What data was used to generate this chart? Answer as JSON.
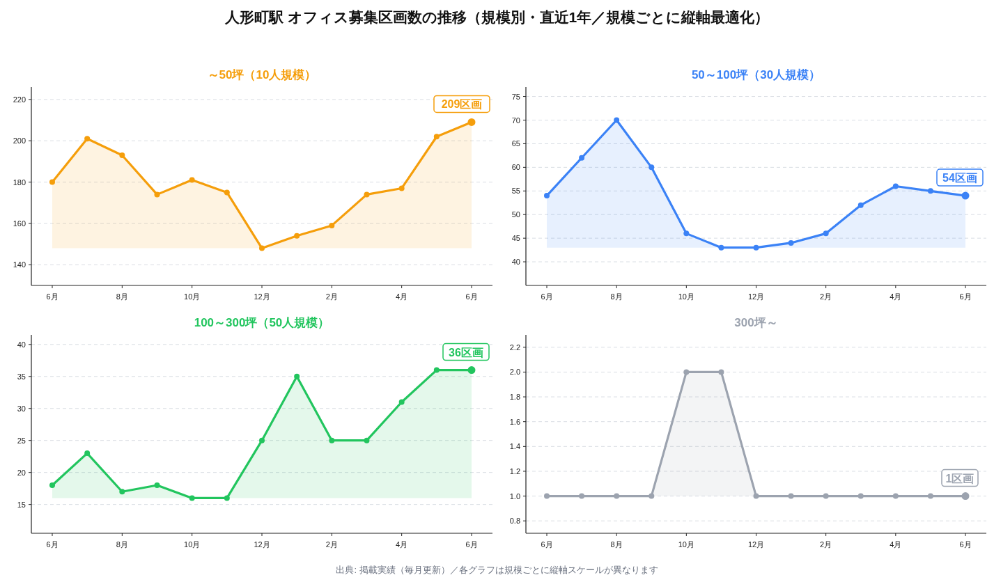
{
  "chart_data": [
    {
      "type": "area",
      "title": "～50坪（10人規模）",
      "categories": [
        "6月",
        null,
        "8月",
        null,
        "10月",
        null,
        "12月",
        null,
        "2月",
        null,
        "4月",
        null,
        "6月"
      ],
      "series": [
        {
          "color": "#f59e0b",
          "values": [
            180,
            201,
            193,
            174,
            181,
            175,
            148,
            154,
            159,
            174,
            177,
            202,
            209
          ]
        }
      ],
      "ylim": [
        130,
        226
      ],
      "yticks": [
        140,
        160,
        180,
        200,
        220
      ],
      "grid": "y",
      "marker": "circle",
      "annotations": [
        "209区画"
      ]
    },
    {
      "type": "area",
      "title": "50～100坪（30人規模）",
      "categories": [
        "6月",
        null,
        "8月",
        null,
        "10月",
        null,
        "12月",
        null,
        "2月",
        null,
        "4月",
        null,
        "6月"
      ],
      "series": [
        {
          "color": "#3b82f6",
          "values": [
            54,
            62,
            70,
            60,
            46,
            43,
            43,
            44,
            46,
            52,
            56,
            55,
            54
          ]
        }
      ],
      "ylim": [
        35,
        77
      ],
      "yticks": [
        40,
        45,
        50,
        55,
        60,
        65,
        70,
        75
      ],
      "grid": "y",
      "marker": "circle",
      "annotations": [
        "54区画"
      ]
    },
    {
      "type": "area",
      "title": "100～300坪（50人規模）",
      "categories": [
        "6月",
        null,
        "8月",
        null,
        "10月",
        null,
        "12月",
        null,
        "2月",
        null,
        "4月",
        null,
        "6月"
      ],
      "series": [
        {
          "color": "#22c55e",
          "values": [
            18,
            23,
            17,
            18,
            16,
            16,
            25,
            35,
            25,
            25,
            31,
            36,
            36
          ]
        }
      ],
      "ylim": [
        10.5,
        41.5
      ],
      "yticks": [
        15,
        20,
        25,
        30,
        35,
        40
      ],
      "grid": "y",
      "marker": "circle",
      "annotations": [
        "36区画"
      ]
    },
    {
      "type": "area",
      "title": "300坪～",
      "categories": [
        "6月",
        null,
        "8月",
        null,
        "10月",
        null,
        "12月",
        null,
        "2月",
        null,
        "4月",
        null,
        "6月"
      ],
      "series": [
        {
          "color": "#9ca3af",
          "values": [
            1,
            1,
            1,
            1,
            2,
            2,
            1,
            1,
            1,
            1,
            1,
            1,
            1
          ]
        }
      ],
      "ylim": [
        0.7,
        2.3
      ],
      "yticks": [
        0.8,
        {
          "value": 1,
          "label": "1.0"
        },
        1.2,
        1.4,
        1.6,
        1.8,
        {
          "value": 2,
          "label": "2.0"
        },
        2.2
      ],
      "grid": "y",
      "marker": "circle",
      "annotations": [
        "1区画"
      ]
    },
    {
      "type": "other",
      "title": "人形町駅 オフィス募集区画数の推移（規模別・直近1年／規模ごとに縦軸最適化）",
      "annotations": [
        "出典: 掲載実績（毎月更新）／各グラフは規模ごとに縦軸スケールが異なります"
      ]
    }
  ]
}
